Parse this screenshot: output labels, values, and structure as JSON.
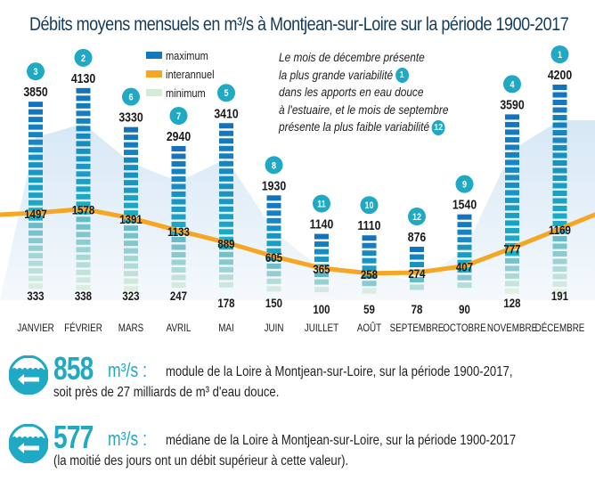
{
  "chart_data": {
    "type": "bar",
    "title": "Débits moyens mensuels en m³/s à Montjean-sur-Loire sur la période 1900-2017",
    "categories": [
      "JANVIER",
      "FÉVRIER",
      "MARS",
      "AVRIL",
      "MAI",
      "JUIN",
      "JUILLET",
      "AOÛT",
      "SEPTEMBRE",
      "OCTOBRE",
      "NOVEMBRE",
      "DÉCEMBRE"
    ],
    "series": [
      {
        "name": "maximum",
        "color": "#1377c0",
        "values": [
          3850,
          4130,
          3330,
          2940,
          3410,
          1930,
          1140,
          1110,
          876,
          1540,
          3590,
          4200
        ]
      },
      {
        "name": "interannuel",
        "color": "#f5a623",
        "type": "line",
        "values": [
          1497,
          1578,
          1391,
          1133,
          889,
          605,
          365,
          258,
          274,
          407,
          777,
          1169
        ]
      },
      {
        "name": "minimum",
        "color": "#d6ead9",
        "values": [
          333,
          338,
          323,
          247,
          178,
          150,
          100,
          59,
          78,
          90,
          128,
          191
        ]
      }
    ],
    "variability_rank": [
      3,
      2,
      6,
      7,
      5,
      8,
      11,
      10,
      12,
      9,
      4,
      1
    ],
    "legend": [
      "maximum",
      "interannuel",
      "minimum"
    ],
    "legend_position": "top-center",
    "ylabel": "m³/s",
    "ylim": [
      0,
      4200
    ],
    "grid": false
  },
  "note": {
    "lines": [
      "Le mois de décembre présente",
      "la plus grande variabilité",
      "dans les apports en eau douce",
      "à l'estuaire, et le mois de septembre",
      "présente la plus faible variabilité"
    ],
    "badge1": "1",
    "badge2": "12"
  },
  "stats": [
    {
      "value": "858",
      "unit": "m³/s :",
      "line1": "module de la Loire à Montjean-sur-Loire, sur la période 1900-2017,",
      "line2": "soit près de 27 milliards de m³ d'eau douce."
    },
    {
      "value": "577",
      "unit": "m³/s :",
      "line1": "médiane de la Loire à Montjean-sur-Loire, sur la période 1900-2017",
      "line2": "(la moitié des jours ont un débit supérieur à cette valeur)."
    }
  ],
  "colors": {
    "accent": "#1fa9c4",
    "title": "#123c5e",
    "line": "#f5a623"
  }
}
